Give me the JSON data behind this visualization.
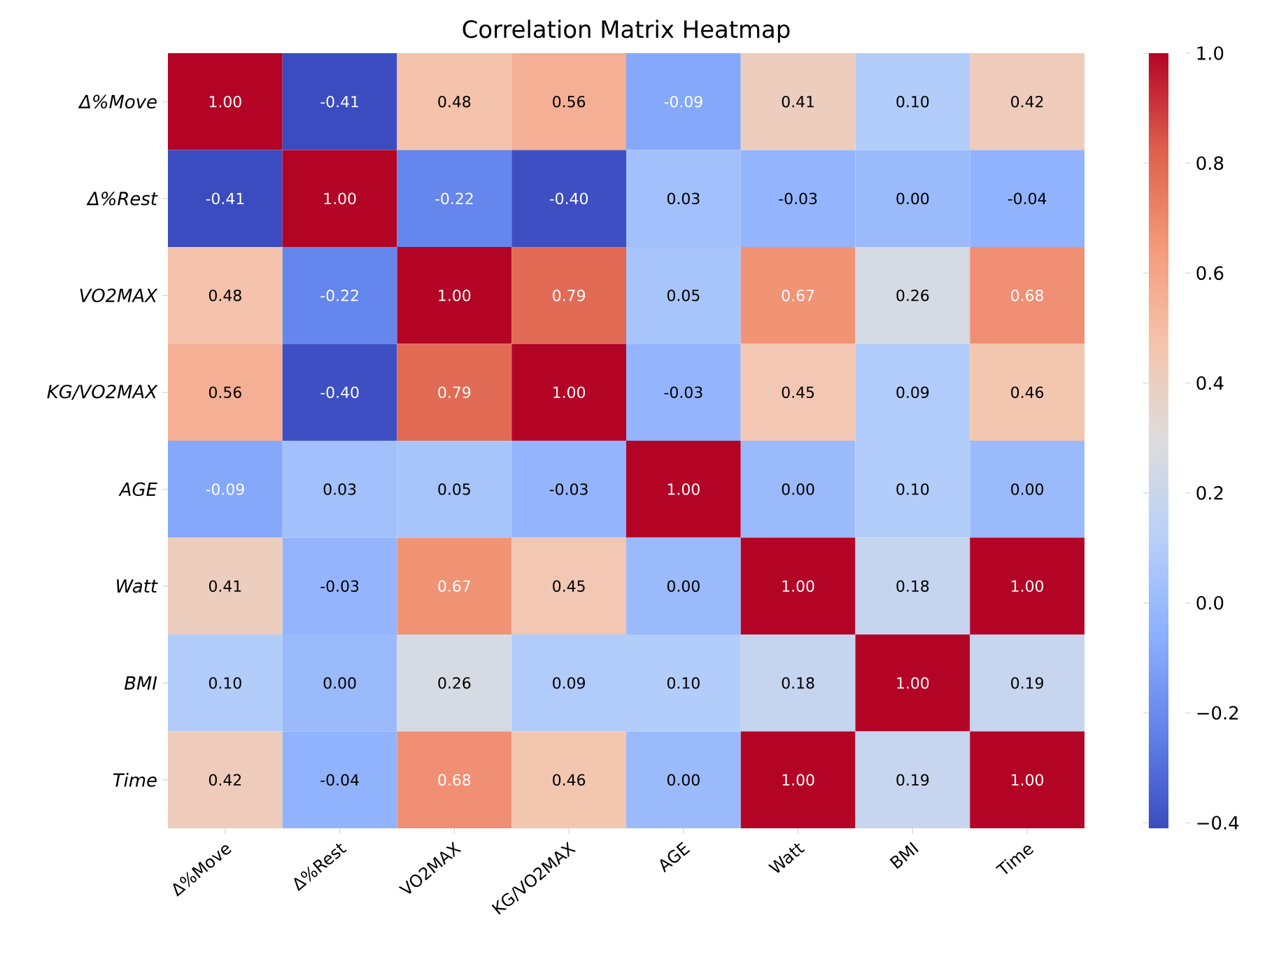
{
  "chart_data": {
    "type": "heatmap",
    "title": "Correlation Matrix Heatmap",
    "categories": [
      "Δ%Move",
      "Δ%Rest",
      "VO2MAX",
      "KG/VO2MAX",
      "AGE",
      "Watt",
      "BMI",
      "Time"
    ],
    "y_categories": [
      "Δ%Move",
      "Δ%Rest",
      "VO2MAX",
      "KG/VO2MAX",
      "AGE",
      "Watt",
      "BMI",
      "Time"
    ],
    "cells": [
      [
        1.0,
        -0.41,
        0.48,
        0.56,
        -0.09,
        0.41,
        0.1,
        0.42
      ],
      [
        -0.41,
        1.0,
        -0.22,
        -0.4,
        0.03,
        -0.03,
        0.0,
        -0.04
      ],
      [
        0.48,
        -0.22,
        1.0,
        0.79,
        0.05,
        0.67,
        0.26,
        0.68
      ],
      [
        0.56,
        -0.4,
        0.79,
        1.0,
        -0.03,
        0.45,
        0.09,
        0.46
      ],
      [
        -0.09,
        0.03,
        0.05,
        -0.03,
        1.0,
        0.0,
        0.1,
        0.0
      ],
      [
        0.41,
        -0.03,
        0.67,
        0.45,
        0.0,
        1.0,
        0.18,
        1.0
      ],
      [
        0.1,
        0.0,
        0.26,
        0.09,
        0.1,
        0.18,
        1.0,
        0.19
      ],
      [
        0.42,
        -0.04,
        0.68,
        0.46,
        0.0,
        1.0,
        0.19,
        1.0
      ]
    ],
    "cell_labels": [
      [
        "1.00",
        "-0.41",
        "0.48",
        "0.56",
        "-0.09",
        "0.41",
        "0.10",
        "0.42"
      ],
      [
        "-0.41",
        "1.00",
        "-0.22",
        "-0.40",
        "0.03",
        "-0.03",
        "0.00",
        "-0.04"
      ],
      [
        "0.48",
        "-0.22",
        "1.00",
        "0.79",
        "0.05",
        "0.67",
        "0.26",
        "0.68"
      ],
      [
        "0.56",
        "-0.40",
        "0.79",
        "1.00",
        "-0.03",
        "0.45",
        "0.09",
        "0.46"
      ],
      [
        "-0.09",
        "0.03",
        "0.05",
        "-0.03",
        "1.00",
        "0.00",
        "0.10",
        "0.00"
      ],
      [
        "0.41",
        "-0.03",
        "0.67",
        "0.45",
        "0.00",
        "1.00",
        "0.18",
        "1.00"
      ],
      [
        "0.10",
        "0.00",
        "0.26",
        "0.09",
        "0.10",
        "0.18",
        "1.00",
        "0.19"
      ],
      [
        "0.42",
        "-0.04",
        "0.68",
        "0.46",
        "0.00",
        "1.00",
        "0.19",
        "1.00"
      ]
    ],
    "clim": [
      -0.41,
      1.0
    ],
    "cticks": [
      {
        "value": -0.4,
        "label": "−0.4"
      },
      {
        "value": -0.2,
        "label": "−0.2"
      },
      {
        "value": 0.0,
        "label": "0.0"
      },
      {
        "value": 0.2,
        "label": "0.2"
      },
      {
        "value": 0.4,
        "label": "0.4"
      },
      {
        "value": 0.6,
        "label": "0.6"
      },
      {
        "value": 0.8,
        "label": "0.8"
      },
      {
        "value": 1.0,
        "label": "1.0"
      }
    ]
  }
}
